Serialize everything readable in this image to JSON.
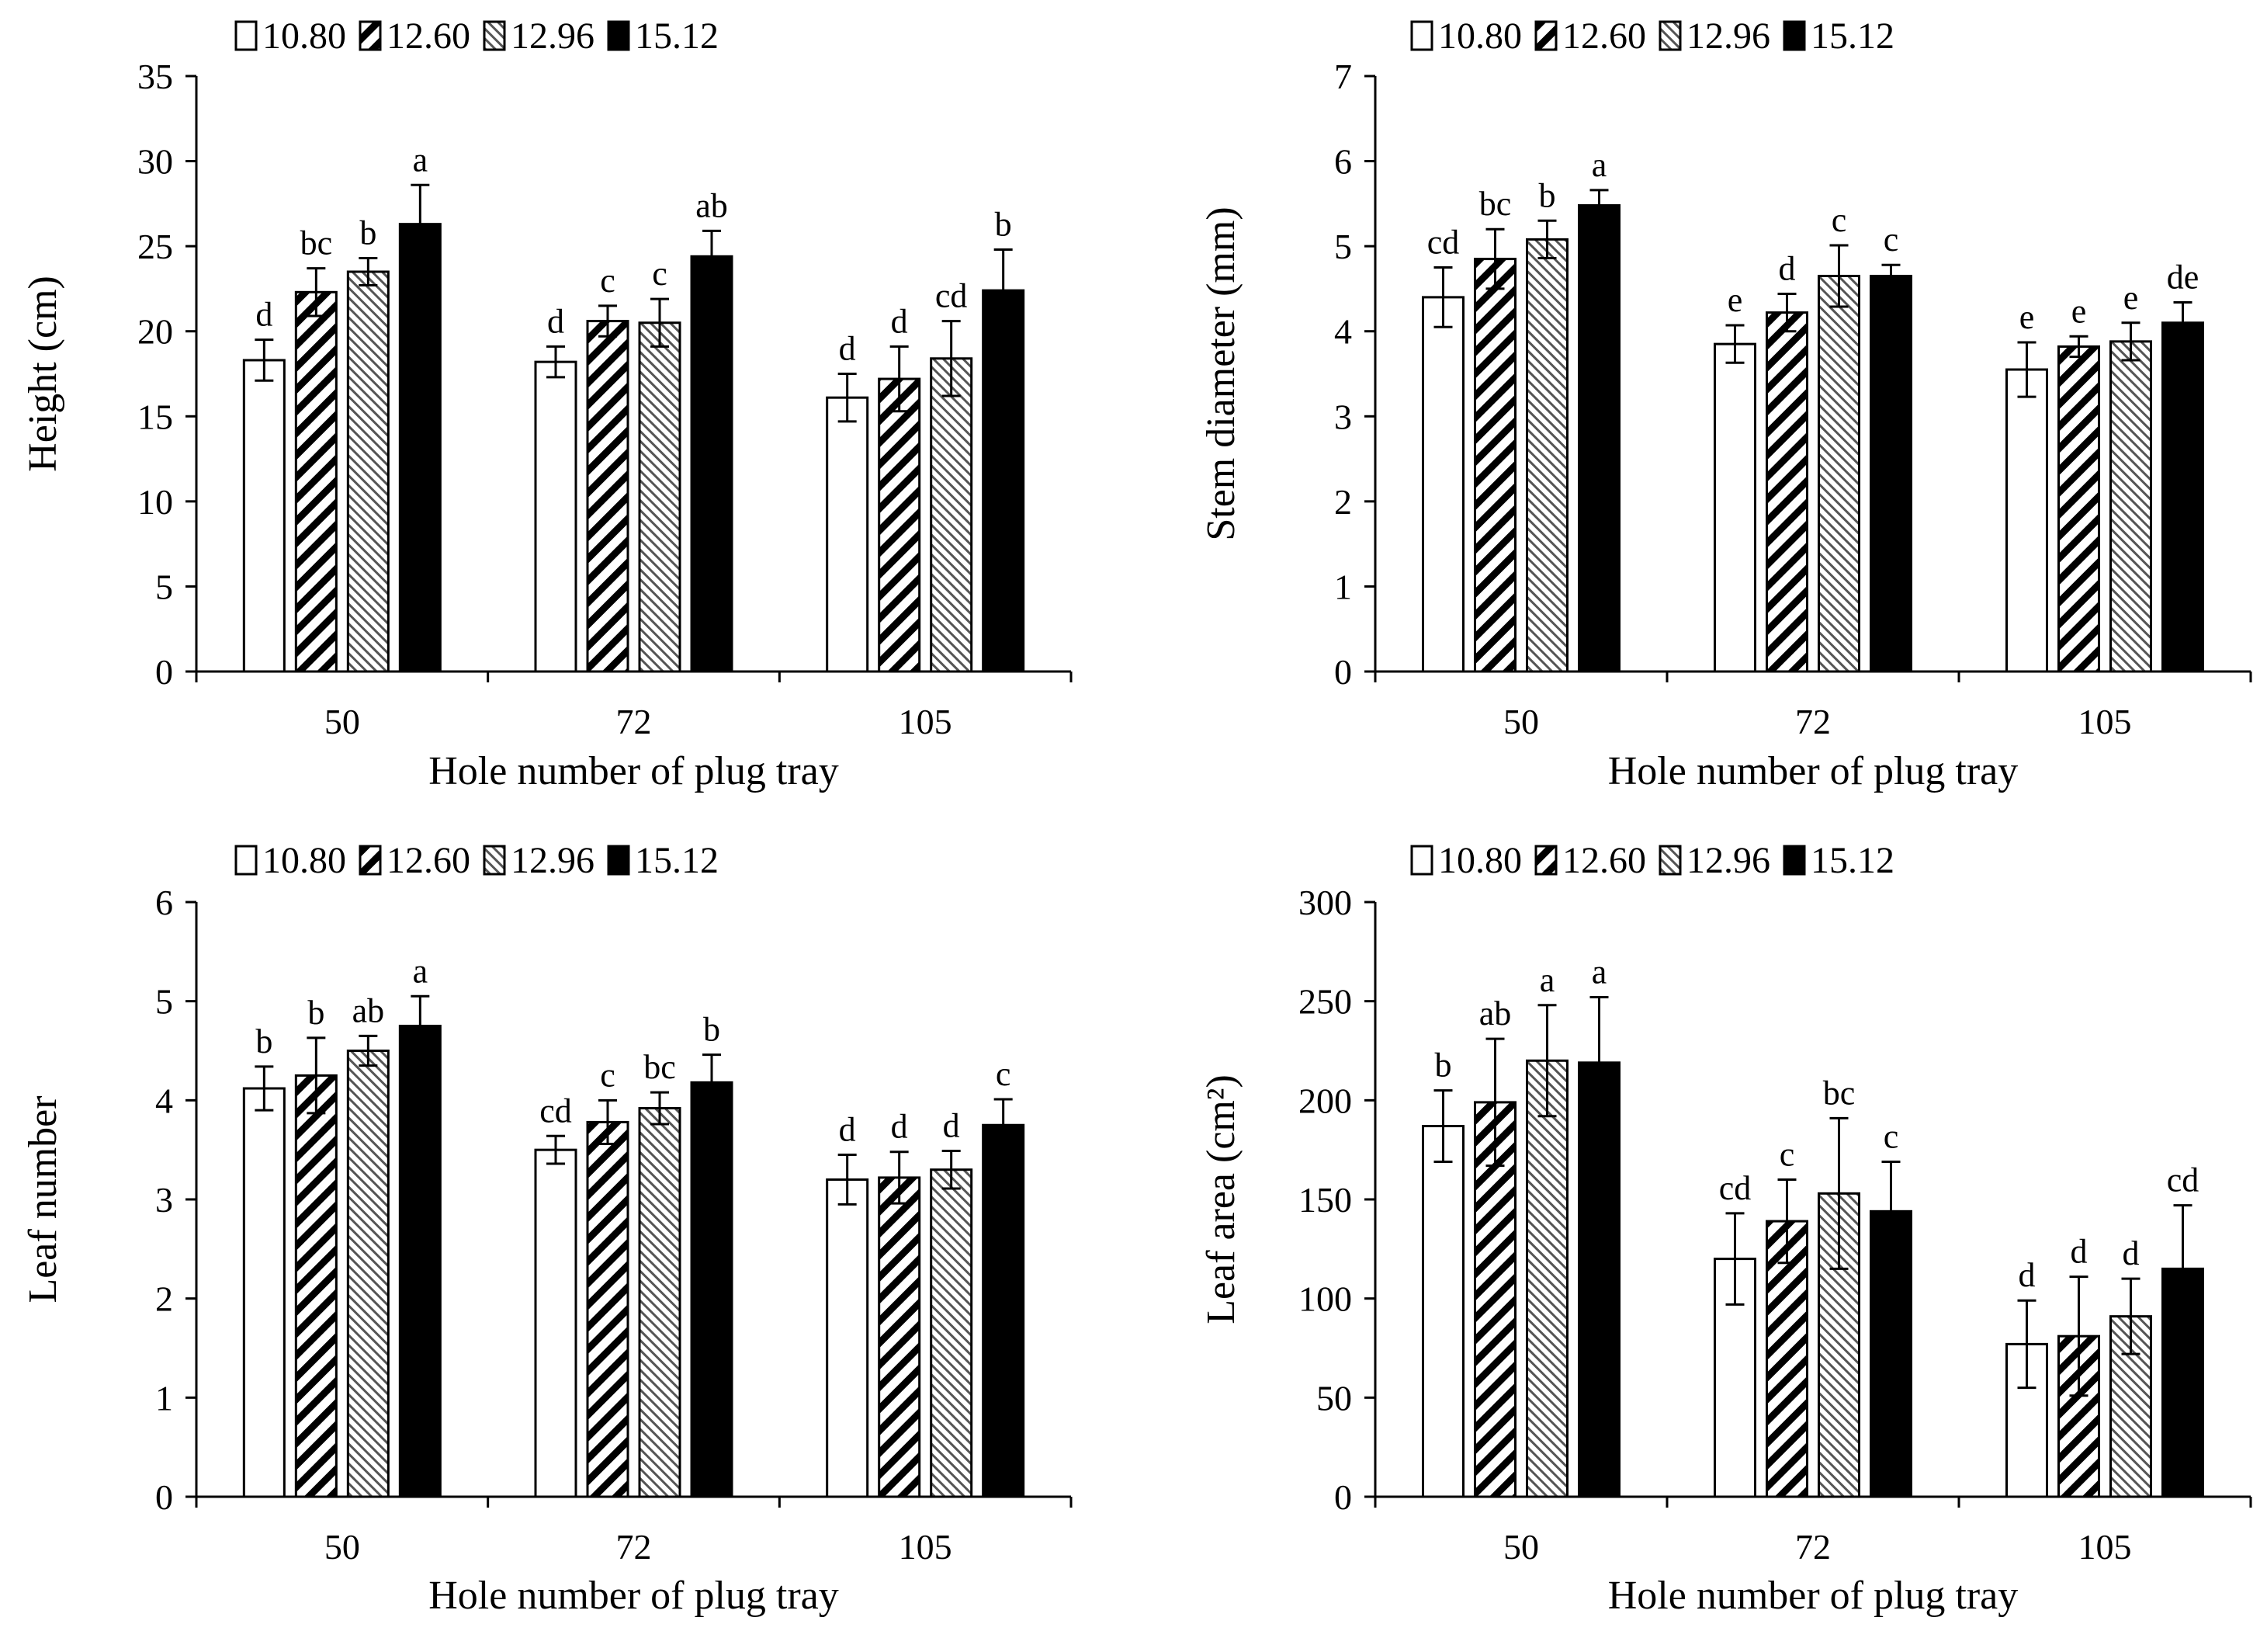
{
  "colors": {
    "black": "#000000",
    "white": "#ffffff",
    "hatch_dense": "#000000",
    "hatch_light": "#8a8a8a"
  },
  "chart_data": [
    {
      "type": "bar",
      "title": "",
      "xlabel": "Hole number of plug tray",
      "ylabel": "Height (cm)",
      "categories": [
        "50",
        "72",
        "105"
      ],
      "ylim": [
        0,
        35
      ],
      "yticks": [
        0,
        5,
        10,
        15,
        20,
        25,
        30,
        35
      ],
      "legend": "top",
      "series": [
        {
          "name": "10.80",
          "values": [
            18.3,
            18.2,
            16.1
          ],
          "errors": [
            1.2,
            0.9,
            1.4
          ],
          "letters": [
            "d",
            "d",
            "d"
          ]
        },
        {
          "name": "12.60",
          "values": [
            22.3,
            20.6,
            17.2
          ],
          "errors": [
            1.4,
            0.9,
            1.9
          ],
          "letters": [
            "bc",
            "c",
            "d"
          ]
        },
        {
          "name": "12.96",
          "values": [
            23.5,
            20.5,
            18.4
          ],
          "errors": [
            0.8,
            1.4,
            2.2
          ],
          "letters": [
            "b",
            "c",
            "cd"
          ]
        },
        {
          "name": "15.12",
          "values": [
            26.3,
            24.4,
            22.4
          ],
          "errors": [
            2.3,
            1.5,
            2.4
          ],
          "letters": [
            "a",
            "ab",
            "b"
          ]
        }
      ]
    },
    {
      "type": "bar",
      "title": "",
      "xlabel": "Hole number of plug tray",
      "ylabel": "Stem diameter (mm)",
      "categories": [
        "50",
        "72",
        "105"
      ],
      "ylim": [
        0,
        7
      ],
      "yticks": [
        0,
        1,
        2,
        3,
        4,
        5,
        6,
        7
      ],
      "legend": "top",
      "series": [
        {
          "name": "10.80",
          "values": [
            4.4,
            3.85,
            3.55
          ],
          "errors": [
            0.35,
            0.22,
            0.32
          ],
          "letters": [
            "cd",
            "e",
            "e"
          ]
        },
        {
          "name": "12.60",
          "values": [
            4.85,
            4.22,
            3.82
          ],
          "errors": [
            0.35,
            0.22,
            0.12
          ],
          "letters": [
            "bc",
            "d",
            "e"
          ]
        },
        {
          "name": "12.96",
          "values": [
            5.08,
            4.65,
            3.88
          ],
          "errors": [
            0.22,
            0.36,
            0.22
          ],
          "letters": [
            "b",
            "c",
            "e"
          ]
        },
        {
          "name": "15.12",
          "values": [
            5.48,
            4.65,
            4.1
          ],
          "errors": [
            0.18,
            0.13,
            0.24
          ],
          "letters": [
            "a",
            "c",
            "de"
          ]
        }
      ]
    },
    {
      "type": "bar",
      "title": "",
      "xlabel": "Hole number of plug tray",
      "ylabel": "Leaf number",
      "categories": [
        "50",
        "72",
        "105"
      ],
      "ylim": [
        0,
        6
      ],
      "yticks": [
        0,
        1,
        2,
        3,
        4,
        5,
        6
      ],
      "legend": "top",
      "series": [
        {
          "name": "10.80",
          "values": [
            4.12,
            3.5,
            3.2
          ],
          "errors": [
            0.22,
            0.14,
            0.25
          ],
          "letters": [
            "b",
            "cd",
            "d"
          ]
        },
        {
          "name": "12.60",
          "values": [
            4.25,
            3.78,
            3.22
          ],
          "errors": [
            0.38,
            0.22,
            0.26
          ],
          "letters": [
            "b",
            "c",
            "d"
          ]
        },
        {
          "name": "12.96",
          "values": [
            4.5,
            3.92,
            3.3
          ],
          "errors": [
            0.15,
            0.16,
            0.19
          ],
          "letters": [
            "ab",
            "bc",
            "d"
          ]
        },
        {
          "name": "15.12",
          "values": [
            4.75,
            4.18,
            3.75
          ],
          "errors": [
            0.3,
            0.28,
            0.26
          ],
          "letters": [
            "a",
            "b",
            "c"
          ]
        }
      ]
    },
    {
      "type": "bar",
      "title": "",
      "xlabel": "Hole number of plug tray",
      "ylabel": "Leaf area (cm²)",
      "categories": [
        "50",
        "72",
        "105"
      ],
      "ylim": [
        0,
        300
      ],
      "yticks": [
        0,
        50,
        100,
        150,
        200,
        250,
        300
      ],
      "legend": "top",
      "series": [
        {
          "name": "10.80",
          "values": [
            187,
            120,
            77
          ],
          "errors": [
            18,
            23,
            22
          ],
          "letters": [
            "b",
            "cd",
            "d"
          ]
        },
        {
          "name": "12.60",
          "values": [
            199,
            139,
            81
          ],
          "errors": [
            32,
            21,
            30
          ],
          "letters": [
            "ab",
            "c",
            "d"
          ]
        },
        {
          "name": "12.96",
          "values": [
            220,
            153,
            91
          ],
          "errors": [
            28,
            38,
            19
          ],
          "letters": [
            "a",
            "bc",
            "d"
          ]
        },
        {
          "name": "15.12",
          "values": [
            219,
            144,
            115
          ],
          "errors": [
            33,
            25,
            32
          ],
          "letters": [
            "a",
            "c",
            "cd"
          ]
        }
      ]
    }
  ]
}
